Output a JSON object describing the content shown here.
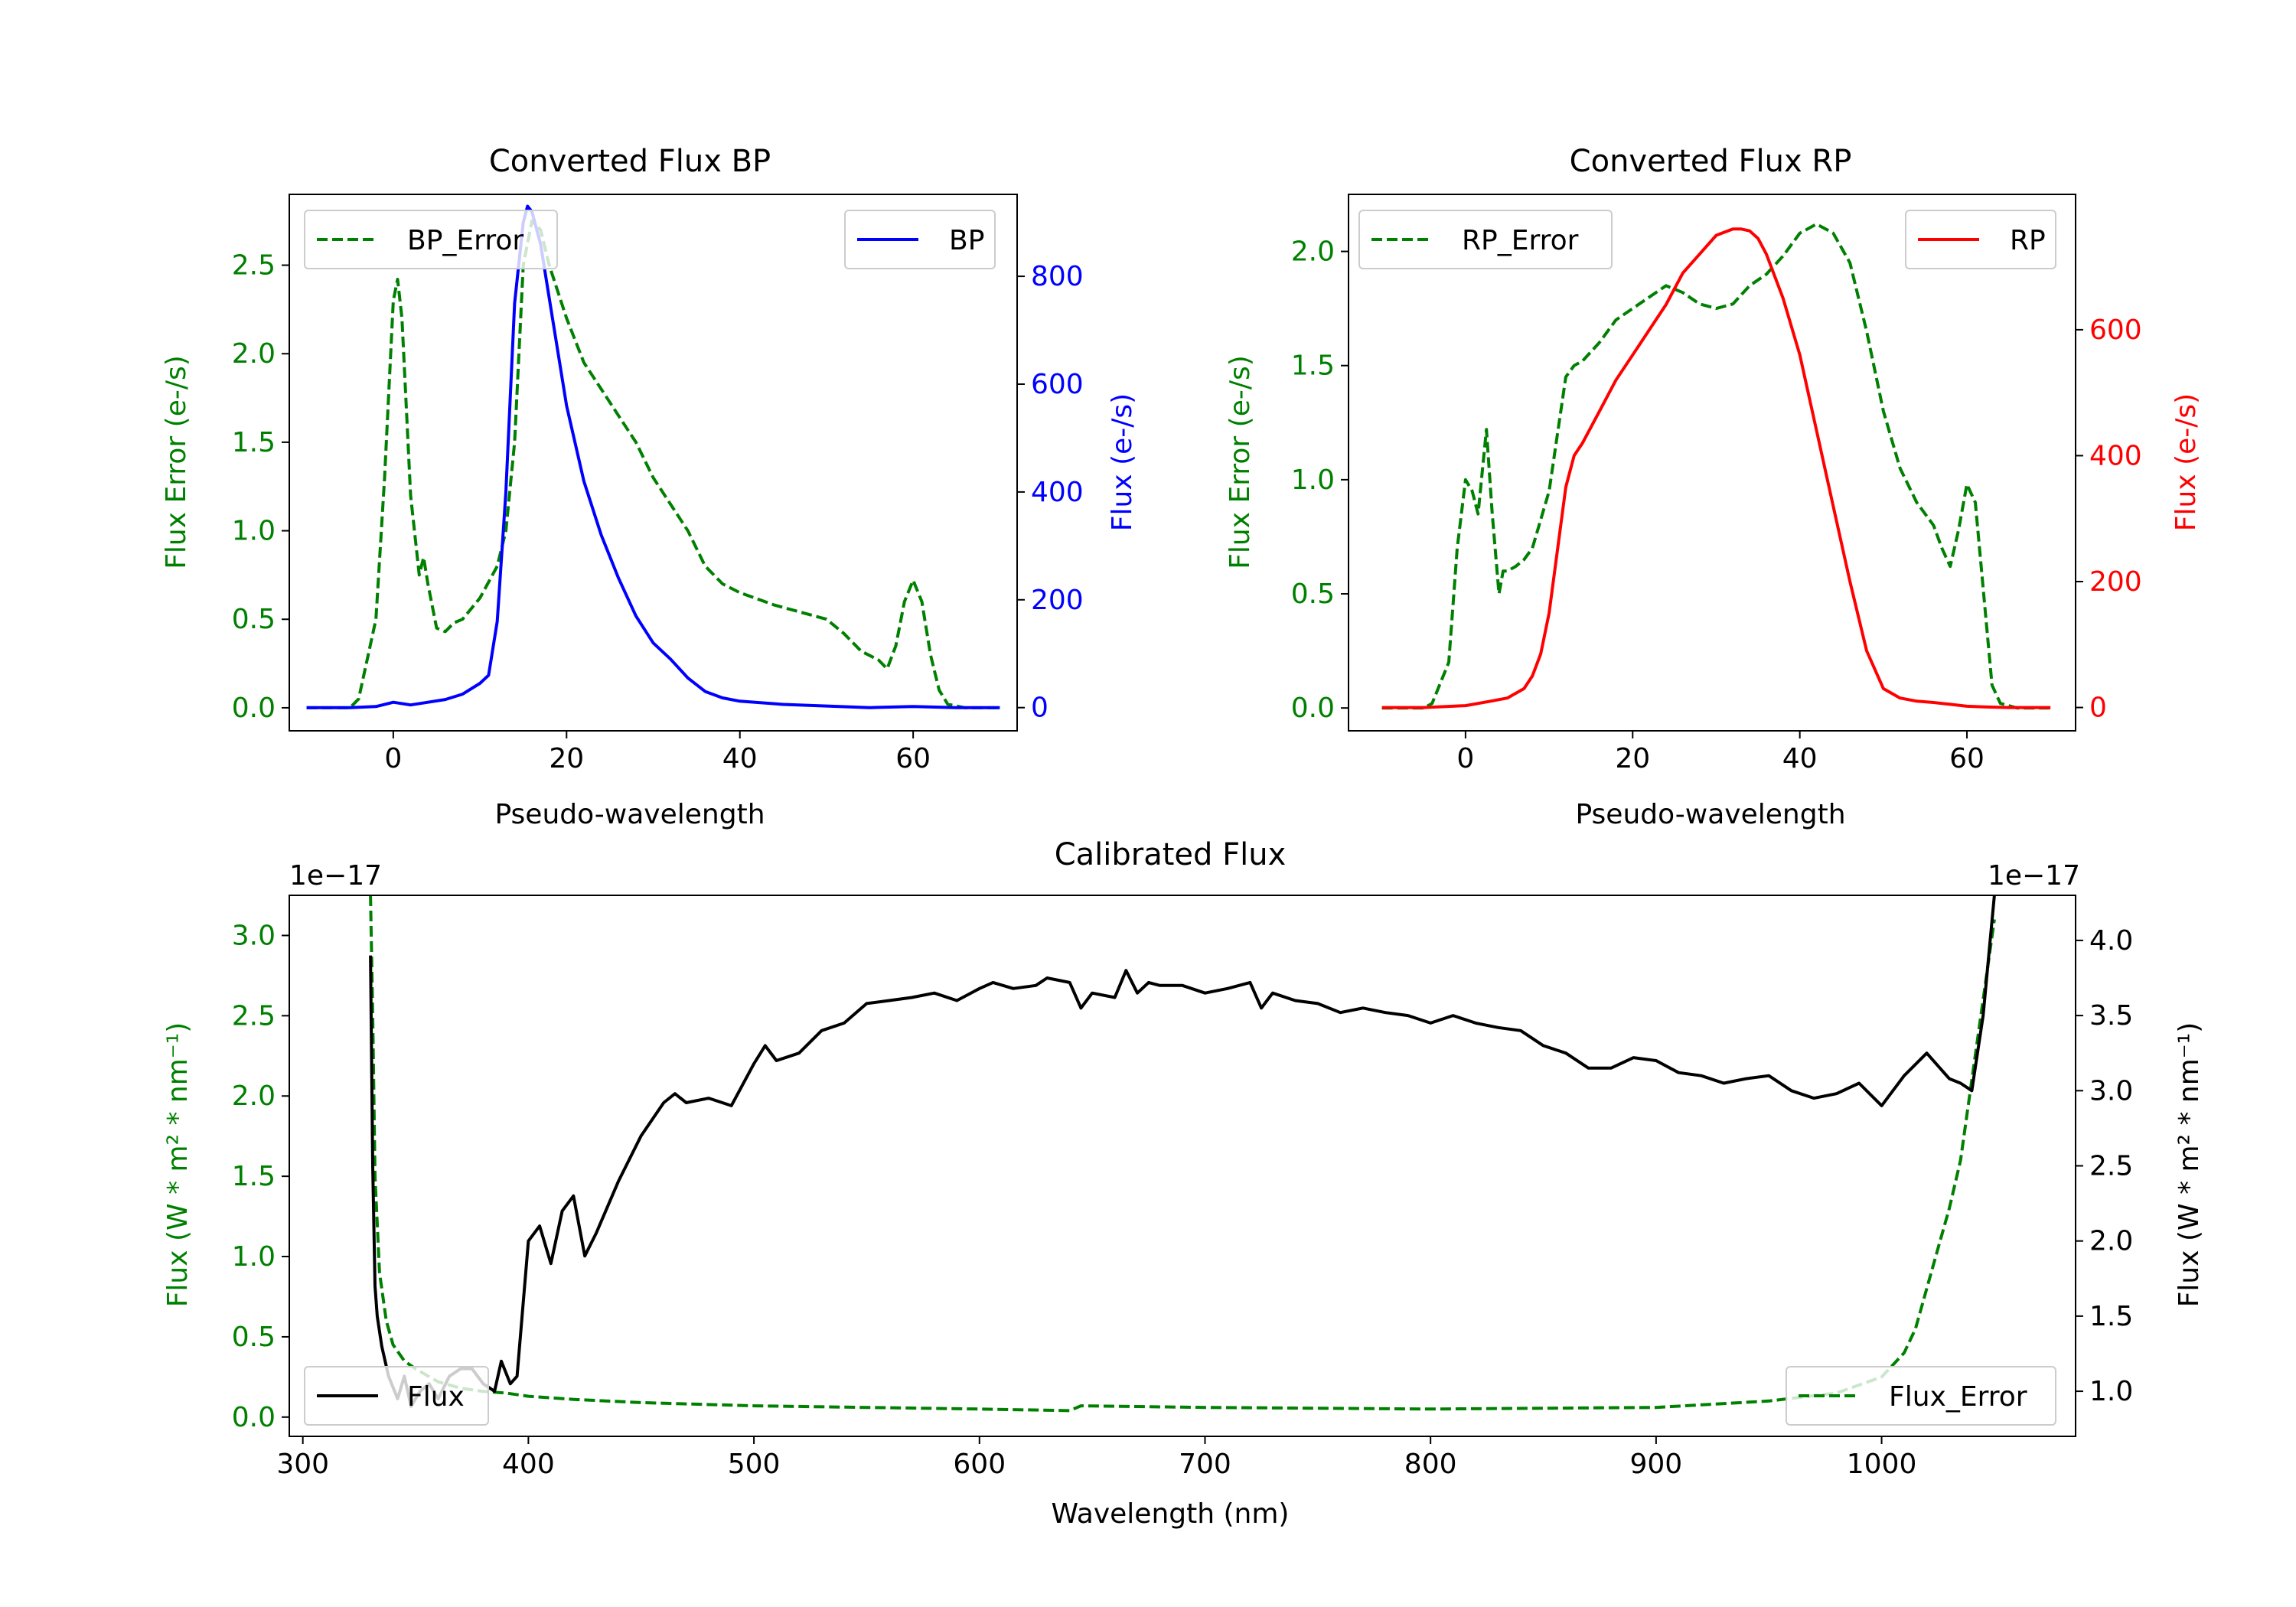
{
  "colors": {
    "axis": "#000000",
    "error": "#008000",
    "bp": "#0000ff",
    "rp": "#ff0000",
    "flux": "#000000",
    "legend_edge": "#cccccc"
  },
  "chart_data": [
    {
      "id": "bp",
      "type": "line",
      "title": "Converted Flux BP",
      "xlabel": "Pseudo-wavelength",
      "ylabel_left": "Flux Error (e-/s)",
      "ylabel_right": "Flux (e-/s)",
      "xlim": [
        -12,
        72
      ],
      "ylim_left": [
        -0.13,
        2.9
      ],
      "ylim_right": [
        -43,
        952
      ],
      "xticks": [
        0,
        20,
        40,
        60
      ],
      "xtick_labels": [
        "0",
        "20",
        "40",
        "60"
      ],
      "yticks_left": [
        0.0,
        0.5,
        1.0,
        1.5,
        2.0,
        2.5
      ],
      "ytick_labels_left": [
        "0.0",
        "0.5",
        "1.0",
        "1.5",
        "2.0",
        "2.5"
      ],
      "yticks_right": [
        0,
        200,
        400,
        600,
        800
      ],
      "ytick_labels_right": [
        "0",
        "200",
        "400",
        "600",
        "800"
      ],
      "legend_left": "BP_Error",
      "legend_right": "BP",
      "series": [
        {
          "name": "BP_Error",
          "axis": "left",
          "style": "dashed",
          "color": "#008000",
          "x": [
            -10,
            -5,
            -4,
            -2,
            -1,
            0,
            0.5,
            1,
            2,
            3,
            3.5,
            4,
            5,
            6,
            7,
            8,
            10,
            12,
            13,
            14,
            15,
            16,
            17,
            18,
            20,
            22,
            24,
            26,
            28,
            30,
            32,
            34,
            36,
            38,
            40,
            44,
            50,
            52,
            54,
            56,
            57,
            58,
            59,
            60,
            61,
            62,
            63,
            64,
            66,
            70
          ],
          "y": [
            0,
            0,
            0.05,
            0.5,
            1.3,
            2.3,
            2.42,
            2.2,
            1.2,
            0.75,
            0.85,
            0.7,
            0.45,
            0.43,
            0.48,
            0.5,
            0.62,
            0.8,
            1.0,
            1.5,
            2.5,
            2.75,
            2.7,
            2.5,
            2.2,
            1.95,
            1.8,
            1.65,
            1.5,
            1.3,
            1.15,
            1.0,
            0.8,
            0.7,
            0.65,
            0.58,
            0.5,
            0.42,
            0.32,
            0.27,
            0.22,
            0.35,
            0.6,
            0.72,
            0.6,
            0.3,
            0.1,
            0.02,
            0.0,
            0.0
          ]
        },
        {
          "name": "BP",
          "axis": "right",
          "style": "solid",
          "color": "#0000ff",
          "x": [
            -10,
            -5,
            -2,
            0,
            2,
            4,
            6,
            8,
            10,
            11,
            12,
            13,
            14,
            15,
            15.5,
            16,
            17,
            18,
            20,
            22,
            24,
            26,
            28,
            30,
            32,
            34,
            36,
            38,
            40,
            45,
            50,
            55,
            60,
            65,
            70
          ],
          "y": [
            0,
            0,
            2,
            10,
            5,
            10,
            15,
            25,
            45,
            60,
            160,
            400,
            750,
            900,
            930,
            920,
            860,
            760,
            560,
            420,
            320,
            240,
            170,
            120,
            90,
            55,
            30,
            18,
            12,
            6,
            3,
            0,
            2,
            0,
            0
          ]
        }
      ]
    },
    {
      "id": "rp",
      "type": "line",
      "title": "Converted Flux RP",
      "xlabel": "Pseudo-wavelength",
      "ylabel_left": "Flux Error (e-/s)",
      "ylabel_right": "Flux (e-/s)",
      "xlim": [
        -14,
        73
      ],
      "ylim_left": [
        -0.1,
        2.25
      ],
      "ylim_right": [
        -37,
        815
      ],
      "xticks": [
        0,
        20,
        40,
        60
      ],
      "xtick_labels": [
        "0",
        "20",
        "40",
        "60"
      ],
      "yticks_left": [
        0.0,
        0.5,
        1.0,
        1.5,
        2.0
      ],
      "ytick_labels_left": [
        "0.0",
        "0.5",
        "1.0",
        "1.5",
        "2.0"
      ],
      "yticks_right": [
        0,
        200,
        400,
        600
      ],
      "ytick_labels_right": [
        "0",
        "200",
        "400",
        "600"
      ],
      "legend_left": "RP_Error",
      "legend_right": "RP",
      "series": [
        {
          "name": "RP_Error",
          "axis": "left",
          "style": "dashed",
          "color": "#008000",
          "x": [
            -10,
            -5,
            -4,
            -2,
            -1,
            0,
            0.8,
            1.5,
            2.5,
            3.2,
            4,
            4.5,
            5,
            6,
            7,
            8,
            10,
            12,
            13,
            14,
            16,
            18,
            20,
            22,
            24,
            26,
            28,
            30,
            32,
            34,
            36,
            38,
            40,
            42,
            44,
            46,
            48,
            50,
            52,
            54,
            56,
            57,
            58,
            59,
            60,
            61,
            62,
            63,
            64,
            66,
            70
          ],
          "y": [
            0,
            0,
            0.02,
            0.2,
            0.7,
            1.0,
            0.95,
            0.85,
            1.22,
            0.85,
            0.5,
            0.6,
            0.6,
            0.62,
            0.65,
            0.7,
            0.95,
            1.45,
            1.5,
            1.52,
            1.6,
            1.7,
            1.75,
            1.8,
            1.85,
            1.82,
            1.77,
            1.75,
            1.77,
            1.85,
            1.9,
            1.98,
            2.08,
            2.12,
            2.08,
            1.95,
            1.65,
            1.3,
            1.05,
            0.9,
            0.8,
            0.7,
            0.62,
            0.78,
            0.98,
            0.9,
            0.5,
            0.1,
            0.02,
            0.0,
            0.0
          ]
        },
        {
          "name": "RP",
          "axis": "right",
          "style": "solid",
          "color": "#ff0000",
          "x": [
            -10,
            -5,
            0,
            3,
            5,
            7,
            8,
            9,
            10,
            11,
            12,
            13,
            14,
            16,
            18,
            20,
            22,
            24,
            26,
            28,
            30,
            32,
            33,
            34,
            35,
            36,
            38,
            40,
            42,
            44,
            46,
            48,
            50,
            52,
            54,
            56,
            58,
            60,
            62,
            65,
            70
          ],
          "y": [
            0,
            0,
            3,
            10,
            15,
            30,
            50,
            85,
            150,
            250,
            350,
            400,
            420,
            470,
            520,
            560,
            600,
            640,
            690,
            720,
            750,
            760,
            760,
            757,
            745,
            720,
            650,
            560,
            440,
            320,
            200,
            90,
            30,
            15,
            10,
            8,
            5,
            2,
            1,
            0,
            0
          ]
        }
      ]
    },
    {
      "id": "calibrated",
      "type": "line",
      "title": "Calibrated Flux",
      "xlabel": "Wavelength (nm)",
      "ylabel_left": "Flux (W * m² * nm⁻¹)",
      "ylabel_right": "Flux (W * m² * nm⁻¹)",
      "offset_left": "1e−17",
      "offset_right": "1e−17",
      "xlim": [
        294,
        1086
      ],
      "ylim_left": [
        -0.12,
        3.25
      ],
      "ylim_right": [
        0.7,
        4.3
      ],
      "xticks": [
        300,
        400,
        500,
        600,
        700,
        800,
        900,
        1000
      ],
      "xtick_labels": [
        "300",
        "400",
        "500",
        "600",
        "700",
        "800",
        "900",
        "1000"
      ],
      "yticks_left": [
        0.0,
        0.5,
        1.0,
        1.5,
        2.0,
        2.5,
        3.0
      ],
      "ytick_labels_left": [
        "0.0",
        "0.5",
        "1.0",
        "1.5",
        "2.0",
        "2.5",
        "3.0"
      ],
      "yticks_right": [
        1.0,
        1.5,
        2.0,
        2.5,
        3.0,
        3.5,
        4.0
      ],
      "ytick_labels_right": [
        "1.0",
        "1.5",
        "2.0",
        "2.5",
        "3.0",
        "3.5",
        "4.0"
      ],
      "legend_left": "Flux",
      "legend_right": "Flux_Error",
      "series": [
        {
          "name": "Flux_Error",
          "axis": "left",
          "style": "dashed",
          "color": "#008000",
          "x": [
            330,
            331,
            332,
            334,
            337,
            340,
            345,
            350,
            360,
            370,
            380,
            390,
            400,
            420,
            450,
            500,
            550,
            600,
            640,
            645,
            700,
            800,
            900,
            950,
            980,
            1000,
            1010,
            1015,
            1020,
            1025,
            1030,
            1035,
            1040,
            1045,
            1050
          ],
          "y": [
            3.25,
            2.5,
            1.5,
            0.9,
            0.6,
            0.45,
            0.35,
            0.3,
            0.22,
            0.18,
            0.16,
            0.15,
            0.13,
            0.11,
            0.09,
            0.07,
            0.06,
            0.05,
            0.04,
            0.07,
            0.06,
            0.05,
            0.06,
            0.1,
            0.15,
            0.25,
            0.4,
            0.55,
            0.8,
            1.05,
            1.3,
            1.6,
            2.1,
            2.6,
            3.1
          ]
        },
        {
          "name": "Flux",
          "axis": "right",
          "style": "solid",
          "color": "#000000",
          "x": [
            330,
            331,
            332,
            333,
            335,
            338,
            342,
            345,
            348,
            352,
            356,
            360,
            365,
            370,
            375,
            380,
            385,
            388,
            392,
            395,
            400,
            405,
            410,
            415,
            420,
            425,
            430,
            440,
            450,
            460,
            465,
            470,
            480,
            490,
            500,
            505,
            510,
            520,
            530,
            540,
            550,
            560,
            570,
            580,
            590,
            600,
            606,
            615,
            625,
            630,
            640,
            645,
            650,
            660,
            665,
            670,
            675,
            680,
            690,
            700,
            710,
            720,
            725,
            730,
            740,
            750,
            760,
            770,
            780,
            790,
            800,
            810,
            820,
            830,
            840,
            850,
            860,
            870,
            880,
            890,
            900,
            910,
            920,
            930,
            940,
            950,
            960,
            970,
            980,
            990,
            1000,
            1010,
            1020,
            1030,
            1035,
            1040,
            1045,
            1050
          ],
          "y": [
            3.9,
            2.5,
            1.7,
            1.5,
            1.3,
            1.1,
            0.95,
            1.1,
            0.9,
            1.0,
            1.05,
            0.95,
            1.1,
            1.15,
            1.15,
            1.05,
            1.0,
            1.2,
            1.05,
            1.1,
            2.0,
            2.1,
            1.85,
            2.2,
            2.3,
            1.9,
            2.05,
            2.4,
            2.7,
            2.92,
            2.98,
            2.92,
            2.95,
            2.9,
            3.18,
            3.3,
            3.2,
            3.25,
            3.4,
            3.45,
            3.58,
            3.6,
            3.62,
            3.65,
            3.6,
            3.68,
            3.72,
            3.68,
            3.7,
            3.75,
            3.72,
            3.55,
            3.65,
            3.62,
            3.8,
            3.65,
            3.72,
            3.7,
            3.7,
            3.65,
            3.68,
            3.72,
            3.55,
            3.65,
            3.6,
            3.58,
            3.52,
            3.55,
            3.52,
            3.5,
            3.45,
            3.5,
            3.45,
            3.42,
            3.4,
            3.3,
            3.25,
            3.15,
            3.15,
            3.22,
            3.2,
            3.12,
            3.1,
            3.05,
            3.08,
            3.1,
            3.0,
            2.95,
            2.98,
            3.05,
            2.9,
            3.1,
            3.25,
            3.08,
            3.05,
            3.0,
            3.5,
            4.3
          ]
        }
      ]
    }
  ]
}
